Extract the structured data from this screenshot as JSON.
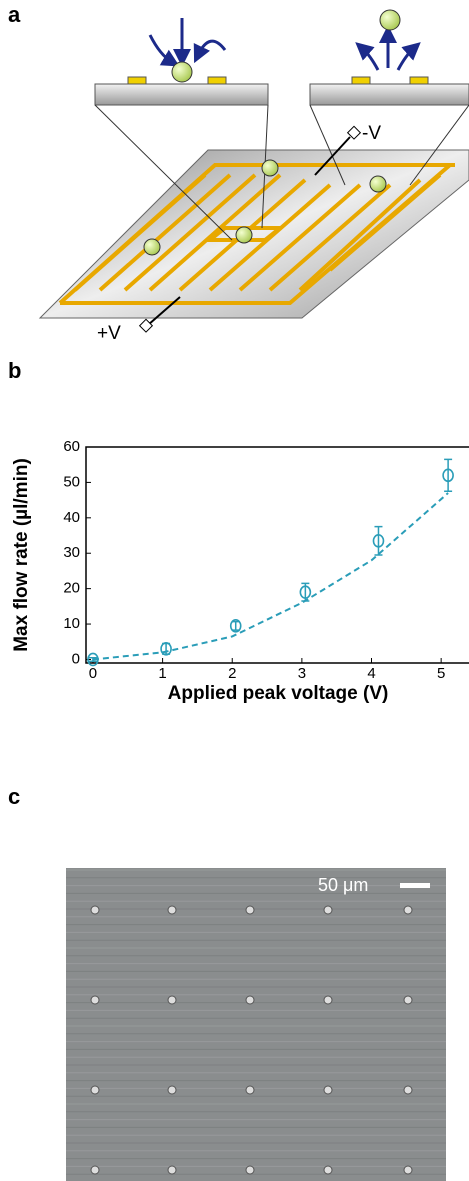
{
  "panel_labels": [
    "a",
    "b",
    "c"
  ],
  "diagram": {
    "minus_label": "-V",
    "plus_label": "+V"
  },
  "chart_data": {
    "type": "scatter",
    "x_label": "Applied peak voltage (V)",
    "y_label": "Max flow rate (µl/min)",
    "x": [
      0,
      1.05,
      2.05,
      3.05,
      4.1,
      5.1
    ],
    "series": [
      {
        "color": "#2a9db8",
        "values": [
          0,
          3,
          9.5,
          19,
          33.5,
          52
        ],
        "errors": [
          0.5,
          1.5,
          1.2,
          2.5,
          4,
          4.5
        ]
      }
    ],
    "fit": {
      "color": "#2a9db8",
      "x": [
        0,
        1,
        2,
        3,
        4,
        5.1
      ],
      "values": [
        0,
        2,
        6.5,
        16,
        28,
        47
      ]
    },
    "xlim": [
      -0.1,
      5.4
    ],
    "ylim": [
      -1,
      60
    ],
    "xticks": [
      0,
      1,
      2,
      3,
      4,
      5
    ],
    "yticks": [
      0,
      10,
      20,
      30,
      40,
      50,
      60
    ]
  },
  "micrograph": {
    "scale_label": "50 μm"
  }
}
